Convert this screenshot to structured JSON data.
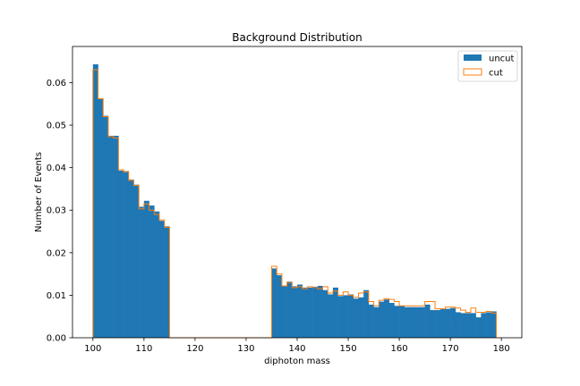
{
  "chart_data": {
    "type": "bar",
    "title": "Background Distribution",
    "xlabel": "diphoton mass",
    "ylabel": "Number of Events",
    "xlim": [
      96,
      184
    ],
    "ylim": [
      0,
      0.0685
    ],
    "xticks": [
      100,
      110,
      120,
      130,
      140,
      150,
      160,
      170,
      180
    ],
    "yticks": [
      0.0,
      0.01,
      0.02,
      0.03,
      0.04,
      0.05,
      0.06
    ],
    "ytick_labels": [
      "0.00",
      "0.01",
      "0.02",
      "0.03",
      "0.04",
      "0.05",
      "0.06"
    ],
    "bin_edges_start": 100,
    "bin_width": 1,
    "legend": {
      "placement": "top-right"
    },
    "grid": false,
    "colors": {
      "uncut": "#1f77b4",
      "cut": "#ff7f0e"
    },
    "series": [
      {
        "name": "uncut",
        "style": "filled",
        "values": [
          0.0643,
          0.0562,
          0.0522,
          0.0475,
          0.0475,
          0.0393,
          0.0392,
          0.0372,
          0.036,
          0.0308,
          0.0322,
          0.0311,
          0.0297,
          0.0275,
          0.0262,
          0,
          0,
          0,
          0,
          0,
          0,
          0,
          0,
          0,
          0,
          0,
          0,
          0,
          0,
          0,
          0,
          0,
          0,
          0,
          0,
          0.0163,
          0.0147,
          0.0122,
          0.0132,
          0.0121,
          0.0125,
          0.0118,
          0.0118,
          0.012,
          0.0122,
          0.0112,
          0.0102,
          0.0118,
          0.0098,
          0.01,
          0.0102,
          0.0092,
          0.0095,
          0.0112,
          0.0078,
          0.0072,
          0.0085,
          0.009,
          0.0082,
          0.0075,
          0.0075,
          0.0072,
          0.0072,
          0.0072,
          0.0072,
          0.0078,
          0.0065,
          0.0065,
          0.0068,
          0.0068,
          0.007,
          0.006,
          0.0058,
          0.0058,
          0.0058,
          0.0048,
          0.0058,
          0.006,
          0.0062
        ]
      },
      {
        "name": "cut",
        "style": "step",
        "values": [
          0.063,
          0.0562,
          0.052,
          0.0473,
          0.047,
          0.0395,
          0.039,
          0.037,
          0.0358,
          0.0303,
          0.0315,
          0.03,
          0.029,
          0.0277,
          0.026,
          0,
          0,
          0,
          0,
          0,
          0,
          0,
          0,
          0,
          0,
          0,
          0,
          0,
          0,
          0,
          0,
          0,
          0,
          0,
          0,
          0.0168,
          0.015,
          0.0122,
          0.013,
          0.0118,
          0.012,
          0.0115,
          0.012,
          0.0118,
          0.0115,
          0.012,
          0.0105,
          0.011,
          0.01,
          0.0108,
          0.01,
          0.0095,
          0.0105,
          0.0108,
          0.0085,
          0.0075,
          0.0088,
          0.0092,
          0.009,
          0.0085,
          0.0075,
          0.0075,
          0.0075,
          0.0075,
          0.0075,
          0.0085,
          0.0085,
          0.0068,
          0.0068,
          0.0072,
          0.0072,
          0.007,
          0.0065,
          0.006,
          0.007,
          0.006,
          0.006,
          0.0062,
          0.0058
        ]
      }
    ]
  }
}
